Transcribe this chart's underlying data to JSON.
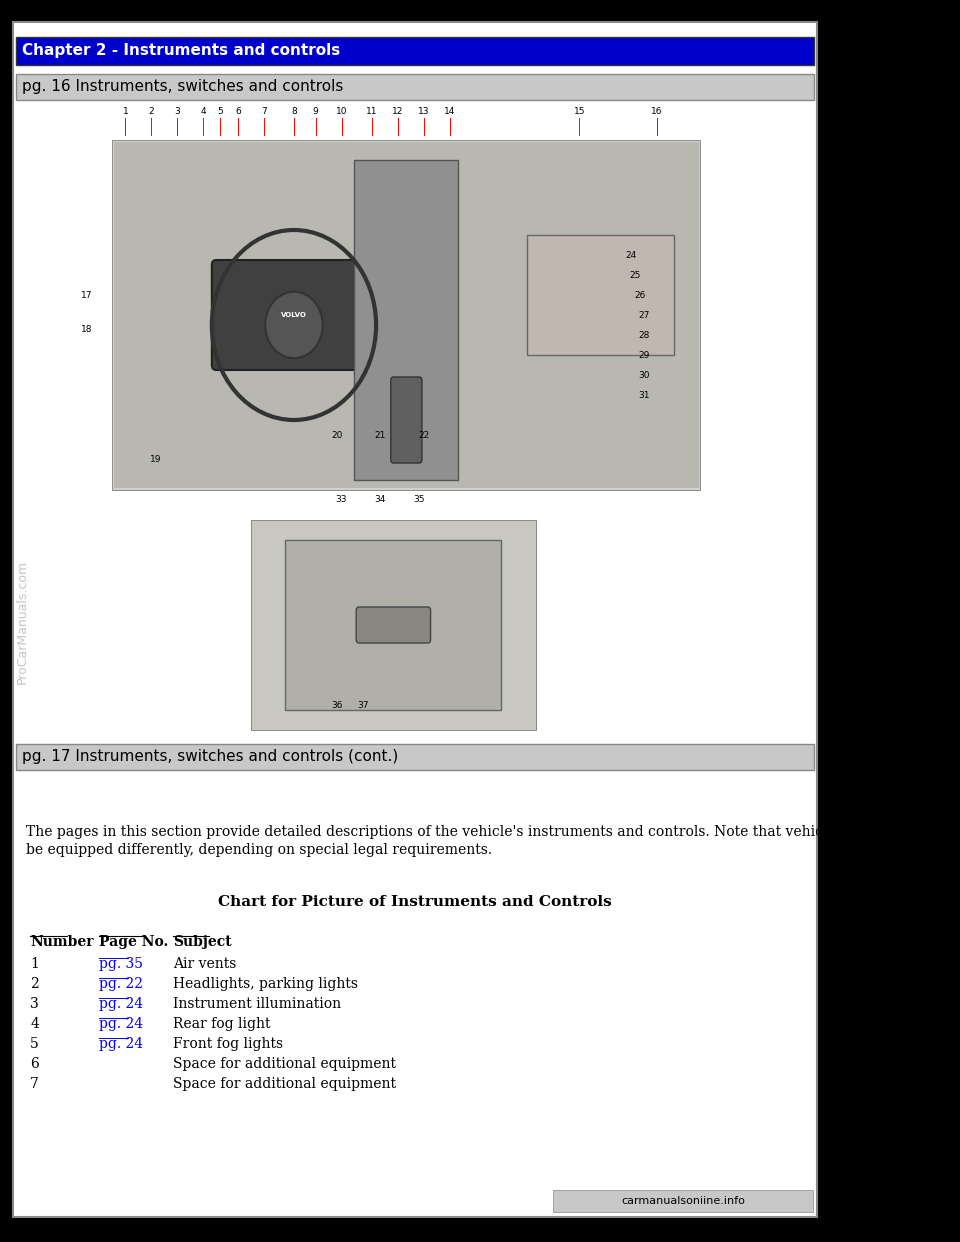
{
  "page_bg": "#ffffff",
  "outer_border_color": "#000000",
  "header_bg": "#0000cc",
  "header_text": "Chapter 2 - Instruments and controls",
  "header_text_color": "#ffffff",
  "header_font_size": 11,
  "subheader1_bg": "#c8c8c8",
  "subheader1_text": "pg. 16 Instruments, switches and controls",
  "subheader1_font_size": 11,
  "subheader2_bg": "#c8c8c8",
  "subheader2_text": "pg. 17 Instruments, switches and controls (cont.)",
  "subheader2_font_size": 11,
  "body_text": "The pages in this section provide detailed descriptions of the vehicle's instruments and controls. Note that vehicles may\nbe equipped differently, depending on special legal requirements.",
  "body_font_size": 10,
  "chart_title": "Chart for Picture of Instruments and Controls",
  "chart_title_font_size": 11,
  "col_headers": [
    "Number",
    "Page No.",
    "Subject"
  ],
  "col_header_font_size": 10,
  "table_rows": [
    [
      "1",
      "pg. 35",
      "Air vents"
    ],
    [
      "2",
      "pg. 22",
      "Headlights, parking lights"
    ],
    [
      "3",
      "pg. 24",
      "Instrument illumination"
    ],
    [
      "4",
      "pg. 24",
      "Rear fog light"
    ],
    [
      "5",
      "pg. 24",
      "Front fog lights"
    ],
    [
      "6",
      "",
      "Space for additional equipment"
    ],
    [
      "7",
      "",
      "Space for additional equipment"
    ]
  ],
  "table_link_color": "#0000ee",
  "table_font_size": 10,
  "watermark_text": "ProCarManuals.com",
  "watermark_color": "#aaaaaa",
  "footer_text": "carmanualsoniine.info",
  "footer_bg": "#c8c8c8",
  "col_underline_lengths": [
    42,
    50,
    42
  ],
  "image1_placeholder": true,
  "image2_placeholder": true
}
